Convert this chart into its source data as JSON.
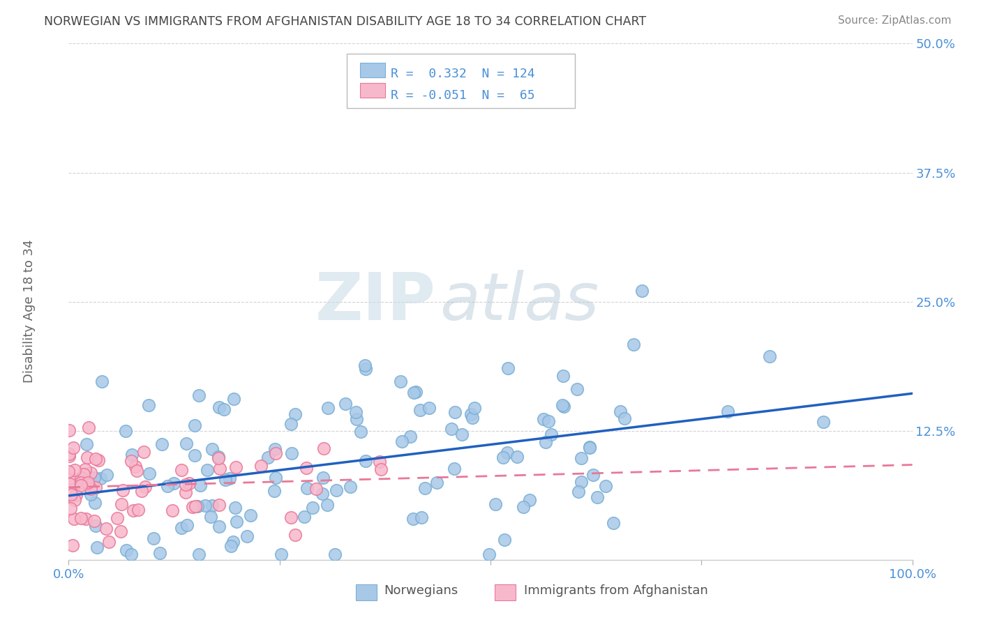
{
  "title": "NORWEGIAN VS IMMIGRANTS FROM AFGHANISTAN DISABILITY AGE 18 TO 34 CORRELATION CHART",
  "source": "Source: ZipAtlas.com",
  "ylabel": "Disability Age 18 to 34",
  "xlabel": "",
  "watermark_zip": "ZIP",
  "watermark_atlas": "atlas",
  "blue_R": 0.332,
  "blue_N": 124,
  "pink_R": -0.051,
  "pink_N": 65,
  "xmin": 0.0,
  "xmax": 1.0,
  "ymin": 0.0,
  "ymax": 0.5,
  "yticks": [
    0.0,
    0.125,
    0.25,
    0.375,
    0.5
  ],
  "ytick_labels": [
    "",
    "12.5%",
    "25.0%",
    "37.5%",
    "50.0%"
  ],
  "xticks": [
    0.0,
    0.25,
    0.5,
    0.75,
    1.0
  ],
  "xtick_labels": [
    "0.0%",
    "",
    "",
    "",
    "100.0%"
  ],
  "blue_scatter_color": "#a8c8e8",
  "blue_scatter_edge": "#7aafd4",
  "pink_scatter_color": "#f8b8cc",
  "pink_scatter_edge": "#e87898",
  "blue_line_color": "#2060c0",
  "pink_line_color": "#e87898",
  "grid_color": "#c8c8c8",
  "background_color": "#ffffff",
  "title_color": "#444444",
  "axis_label_color": "#666666",
  "tick_label_color": "#4a90d9",
  "legend_box_color": "#4a90d9",
  "legend_text_color": "#333333",
  "bottom_legend_color": "#555555"
}
